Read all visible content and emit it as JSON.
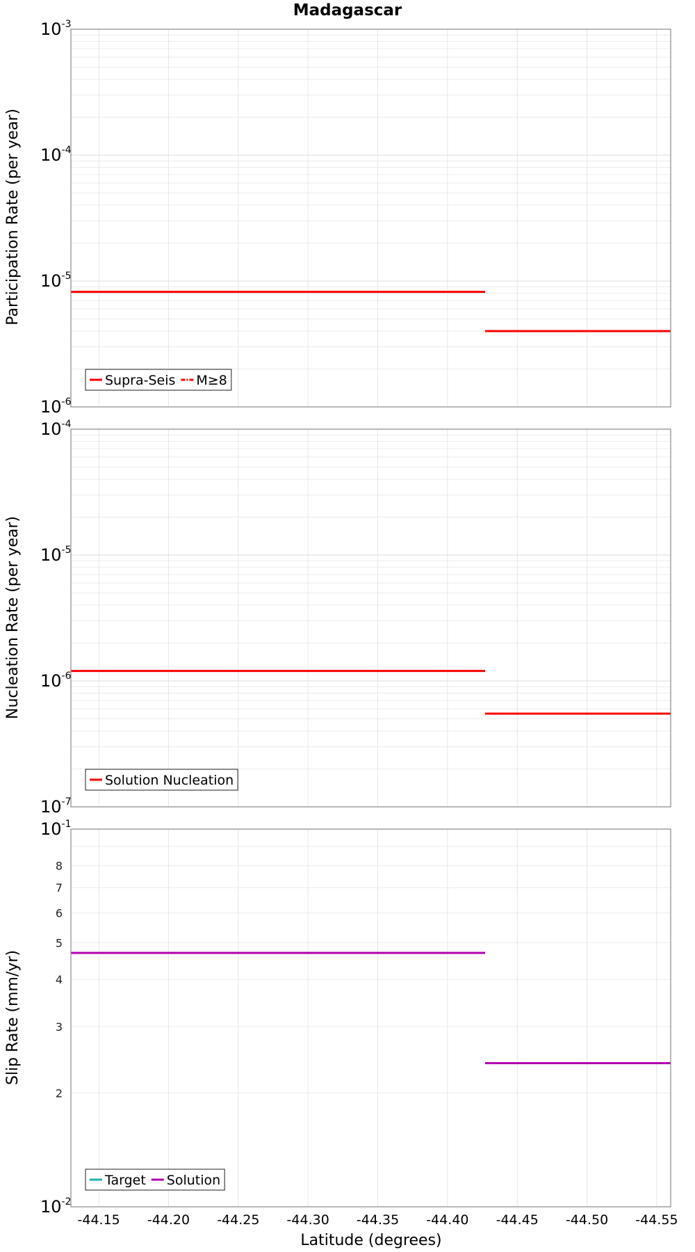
{
  "chart_data": [
    {
      "type": "line",
      "title": "Madagascar",
      "ylabel": "Participation Rate (per year)",
      "xlabel": "",
      "yscale": "log",
      "ylim": [
        1e-06,
        0.001
      ],
      "yticks": [
        {
          "base": "10",
          "exp": "-6"
        },
        {
          "base": "10",
          "exp": "-5"
        },
        {
          "base": "10",
          "exp": "-4"
        },
        {
          "base": "10",
          "exp": "-3"
        }
      ],
      "legend": {
        "position": "bottom-left",
        "entries": [
          {
            "label": "Supra-Seis",
            "color": "#ff0000",
            "style": "solid"
          },
          {
            "label": "M≥8",
            "color": "#ff0000",
            "style": "dashdot"
          }
        ]
      },
      "series": [
        {
          "name": "Supra-Seis",
          "color": "#ff0000",
          "segments": [
            {
              "x": [
                -44.13,
                -44.427
              ],
              "y": 8.2e-06
            },
            {
              "x": [
                -44.427,
                -44.56
              ],
              "y": 4e-06
            }
          ]
        }
      ],
      "grid": true
    },
    {
      "type": "line",
      "title": "",
      "ylabel": "Nucleation Rate (per year)",
      "xlabel": "",
      "yscale": "log",
      "ylim": [
        1e-07,
        0.0001
      ],
      "yticks": [
        {
          "base": "10",
          "exp": "-7"
        },
        {
          "base": "10",
          "exp": "-6"
        },
        {
          "base": "10",
          "exp": "-5"
        },
        {
          "base": "10",
          "exp": "-4"
        }
      ],
      "legend": {
        "position": "bottom-left",
        "entries": [
          {
            "label": "Solution Nucleation",
            "color": "#ff0000",
            "style": "solid"
          }
        ]
      },
      "series": [
        {
          "name": "Solution Nucleation",
          "color": "#ff0000",
          "segments": [
            {
              "x": [
                -44.13,
                -44.427
              ],
              "y": 1.2e-06
            },
            {
              "x": [
                -44.427,
                -44.56
              ],
              "y": 5.5e-07
            }
          ]
        }
      ],
      "grid": true
    },
    {
      "type": "line",
      "title": "",
      "ylabel": "Slip Rate (mm/yr)",
      "xlabel": "Latitude (degrees)",
      "yscale": "log",
      "ylim": [
        0.01,
        0.1
      ],
      "yticks": [
        {
          "base": "10",
          "exp": "-2"
        },
        {
          "base": "10",
          "exp": "-1"
        }
      ],
      "minor_labels": [
        "2",
        "3",
        "4",
        "5",
        "6",
        "7",
        "8"
      ],
      "xlim": [
        -44.13,
        -44.56
      ],
      "xticks": [
        "-44.15",
        "-44.20",
        "-44.25",
        "-44.30",
        "-44.35",
        "-44.40",
        "-44.45",
        "-44.50",
        "-44.55"
      ],
      "legend": {
        "position": "bottom-left",
        "entries": [
          {
            "label": "Target",
            "color": "#20b2aa",
            "style": "solid"
          },
          {
            "label": "Solution",
            "color": "#b000b0",
            "style": "solid"
          }
        ]
      },
      "series": [
        {
          "name": "Solution",
          "color": "#b000b0",
          "segments": [
            {
              "x": [
                -44.13,
                -44.427
              ],
              "y": 0.047
            },
            {
              "x": [
                -44.427,
                -44.56
              ],
              "y": 0.024
            }
          ]
        }
      ],
      "grid": true
    }
  ]
}
